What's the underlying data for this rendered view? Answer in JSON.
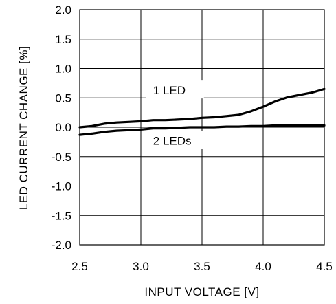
{
  "chart_data": {
    "type": "line",
    "title": "",
    "xlabel": "INPUT VOLTAGE [V]",
    "ylabel": "LED CURRENT CHANGE [%]",
    "xlim": [
      2.5,
      4.5
    ],
    "ylim": [
      -2.0,
      2.0
    ],
    "xticks": [
      "2.5",
      "3.0",
      "3.5",
      "4.0",
      "4.5"
    ],
    "yticks": [
      "2.0",
      "1.5",
      "1.0",
      "0.5",
      "0.0",
      "-0.5",
      "-1.0",
      "-1.5",
      "-2.0"
    ],
    "grid": true,
    "series": [
      {
        "name": "1 LED",
        "color": "#000000",
        "x": [
          2.5,
          2.6,
          2.7,
          2.8,
          2.9,
          3.0,
          3.1,
          3.2,
          3.3,
          3.4,
          3.5,
          3.6,
          3.7,
          3.8,
          3.9,
          4.0,
          4.1,
          4.2,
          4.3,
          4.4,
          4.5
        ],
        "y": [
          0.0,
          0.02,
          0.06,
          0.08,
          0.09,
          0.1,
          0.12,
          0.12,
          0.13,
          0.14,
          0.16,
          0.17,
          0.19,
          0.21,
          0.27,
          0.35,
          0.44,
          0.51,
          0.55,
          0.59,
          0.65
        ]
      },
      {
        "name": "2 LEDs",
        "color": "#000000",
        "x": [
          2.5,
          2.6,
          2.7,
          2.8,
          2.9,
          3.0,
          3.1,
          3.2,
          3.3,
          3.4,
          3.5,
          3.6,
          3.7,
          3.8,
          3.9,
          4.0,
          4.1,
          4.2,
          4.3,
          4.4,
          4.5
        ],
        "y": [
          -0.13,
          -0.11,
          -0.08,
          -0.06,
          -0.05,
          -0.04,
          -0.02,
          -0.02,
          -0.01,
          0.0,
          0.0,
          0.0,
          0.01,
          0.01,
          0.02,
          0.02,
          0.03,
          0.03,
          0.03,
          0.03,
          0.03
        ]
      }
    ],
    "annotations": [
      "1 LED",
      "2 LEDs"
    ]
  }
}
